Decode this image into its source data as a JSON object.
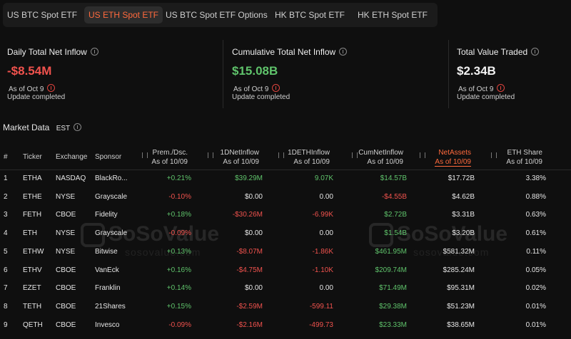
{
  "tabs": {
    "items": [
      "US BTC Spot ETF",
      "US ETH Spot ETF",
      "US BTC Spot ETF Options",
      "HK BTC Spot ETF",
      "HK ETH Spot ETF"
    ],
    "active": 1
  },
  "cards": [
    {
      "title": "Daily Total Net Inflow",
      "value": "-$8.54M",
      "color": "#f0524d",
      "as_of": "As of Oct 9",
      "status": "Update completed"
    },
    {
      "title": "Cumulative Total Net Inflow",
      "value": "$15.08B",
      "color": "#5fc36b",
      "as_of": "As of Oct 9",
      "status": "Update completed"
    },
    {
      "title": "Total Value Traded",
      "value": "$2.34B",
      "color": "#f2f2f2",
      "as_of": "As of Oct 9",
      "status": "Update completed"
    }
  ],
  "market": {
    "title": "Market Data",
    "timezone": "EST"
  },
  "watermark": {
    "name": "SoSoValue",
    "site": "sosovalue.com"
  },
  "table": {
    "active_column": 8,
    "columns": [
      {
        "label": "#"
      },
      {
        "label": "Ticker"
      },
      {
        "label": "Exchange"
      },
      {
        "label": "Sponsor"
      },
      {
        "label": "Prem./Dsc.",
        "sub": "As of 10/09"
      },
      {
        "label": "1DNetInflow",
        "sub": "As of 10/09"
      },
      {
        "label": "1DETHInflow",
        "sub": "As of 10/09"
      },
      {
        "label": "CumNetInflow",
        "sub": "As of 10/09"
      },
      {
        "label": "NetAssets",
        "sub": "As of 10/09"
      },
      {
        "label": "ETH Share",
        "sub": "As of 10/09"
      }
    ],
    "rows": [
      [
        "1",
        "ETHA",
        "NASDAQ",
        "BlackRo...",
        "+0.21%",
        "$39.29M",
        "9.07K",
        "$14.57B",
        "$17.72B",
        "3.38%"
      ],
      [
        "2",
        "ETHE",
        "NYSE",
        "Grayscale",
        "-0.10%",
        "$0.00",
        "0.00",
        "-$4.55B",
        "$4.62B",
        "0.88%"
      ],
      [
        "3",
        "FETH",
        "CBOE",
        "Fidelity",
        "+0.18%",
        "-$30.26M",
        "-6.99K",
        "$2.72B",
        "$3.31B",
        "0.63%"
      ],
      [
        "4",
        "ETH",
        "NYSE",
        "Grayscale",
        "-0.09%",
        "$0.00",
        "0.00",
        "$1.54B",
        "$3.20B",
        "0.61%"
      ],
      [
        "5",
        "ETHW",
        "NYSE",
        "Bitwise",
        "+0.13%",
        "-$8.07M",
        "-1.86K",
        "$461.95M",
        "$581.32M",
        "0.11%"
      ],
      [
        "6",
        "ETHV",
        "CBOE",
        "VanEck",
        "+0.16%",
        "-$4.75M",
        "-1.10K",
        "$209.74M",
        "$285.24M",
        "0.05%"
      ],
      [
        "7",
        "EZET",
        "CBOE",
        "Franklin",
        "+0.14%",
        "$0.00",
        "0.00",
        "$71.49M",
        "$95.31M",
        "0.02%"
      ],
      [
        "8",
        "TETH",
        "CBOE",
        "21Shares",
        "+0.15%",
        "-$2.59M",
        "-599.11",
        "$29.38M",
        "$51.23M",
        "0.01%"
      ],
      [
        "9",
        "QETH",
        "CBOE",
        "Invesco",
        "-0.09%",
        "-$2.16M",
        "-499.73",
        "$23.33M",
        "$38.65M",
        "0.01%"
      ]
    ]
  }
}
